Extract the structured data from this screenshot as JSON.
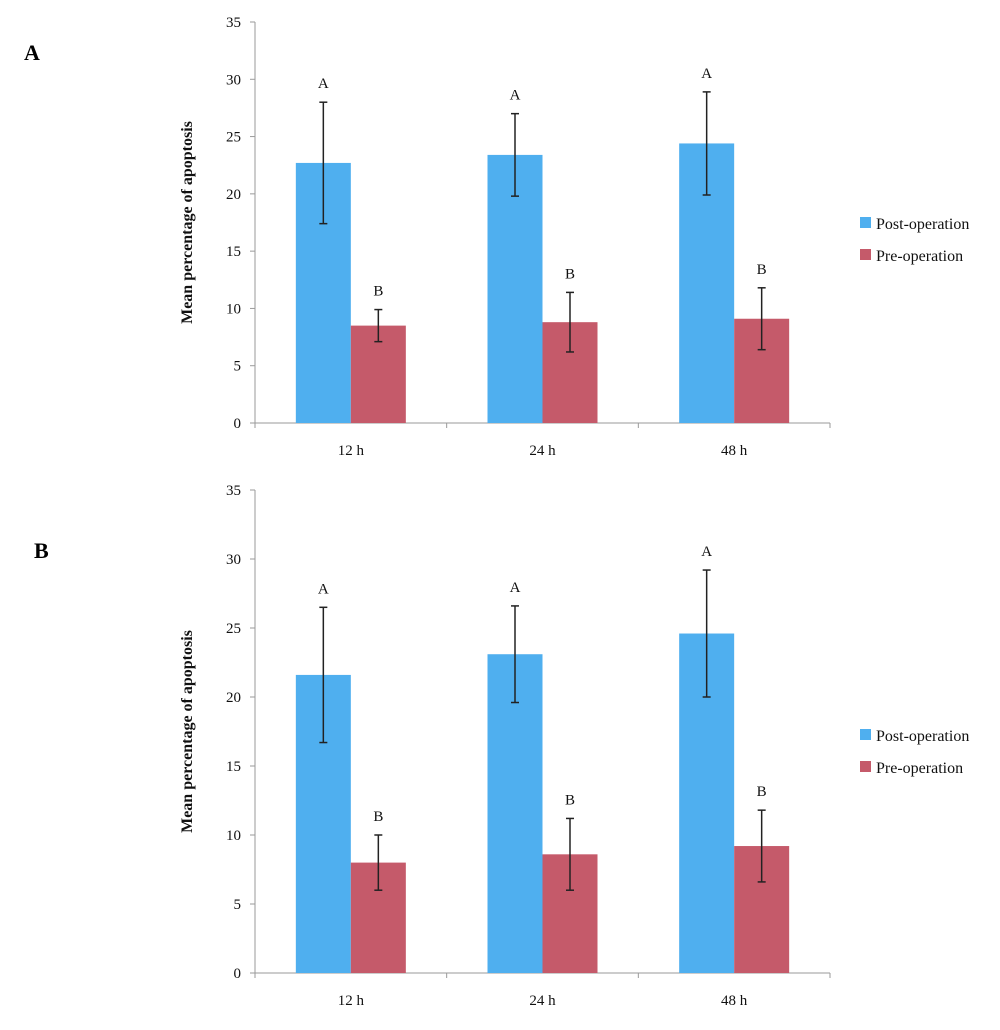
{
  "panels": [
    {
      "label": "A"
    },
    {
      "label": "B"
    }
  ],
  "colors": {
    "post_operation": "#4fafef",
    "pre_operation": "#c55a6a",
    "axis": "#9a9a9a",
    "error_bar": "#222222"
  },
  "chart_data": [
    {
      "type": "bar",
      "title": "",
      "xlabel": "",
      "ylabel": "Mean percentage of apoptosis",
      "ylim": [
        0,
        35
      ],
      "yticks": [
        0,
        5,
        10,
        15,
        20,
        25,
        30,
        35
      ],
      "categories": [
        "12 h",
        "24 h",
        "48 h"
      ],
      "legend_position": "right",
      "series": [
        {
          "name": "Post-operation",
          "values": [
            22.7,
            23.4,
            24.4
          ],
          "errors": [
            5.3,
            3.6,
            4.5
          ],
          "annotations": [
            "A",
            "A",
            "A"
          ]
        },
        {
          "name": "Pre-operation",
          "values": [
            8.5,
            8.8,
            9.1
          ],
          "errors": [
            1.4,
            2.6,
            2.7
          ],
          "annotations": [
            "B",
            "B",
            "B"
          ]
        }
      ]
    },
    {
      "type": "bar",
      "title": "",
      "xlabel": "",
      "ylabel": "Mean percentage of apoptosis",
      "ylim": [
        0,
        35
      ],
      "yticks": [
        0,
        5,
        10,
        15,
        20,
        25,
        30,
        35
      ],
      "categories": [
        "12 h",
        "24 h",
        "48 h"
      ],
      "legend_position": "right",
      "series": [
        {
          "name": "Post-operation",
          "values": [
            21.6,
            23.1,
            24.6
          ],
          "errors": [
            4.9,
            3.5,
            4.6
          ],
          "annotations": [
            "A",
            "A",
            "A"
          ]
        },
        {
          "name": "Pre-operation",
          "values": [
            8.0,
            8.6,
            9.2
          ],
          "errors": [
            2.0,
            2.6,
            2.6
          ],
          "annotations": [
            "B",
            "B",
            "B"
          ]
        }
      ]
    }
  ]
}
